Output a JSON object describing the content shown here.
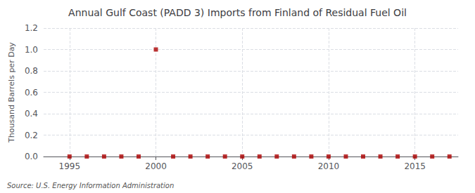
{
  "chart_data": {
    "type": "scatter",
    "title": "Annual Gulf Coast (PADD 3) Imports from Finland of Residual Fuel Oil",
    "ylabel": "Thousand Barrels per Day",
    "source": "Source: U.S. Energy Information Administration",
    "x": [
      1995,
      1996,
      1997,
      1998,
      1999,
      2000,
      2001,
      2002,
      2003,
      2004,
      2005,
      2006,
      2007,
      2008,
      2009,
      2010,
      2011,
      2012,
      2013,
      2014,
      2015,
      2016,
      2017
    ],
    "values": [
      0.0,
      0.0,
      0.0,
      0.0,
      0.0,
      1.0,
      0.0,
      0.0,
      0.0,
      0.0,
      0.0,
      0.0,
      0.0,
      0.0,
      0.0,
      0.0,
      0.0,
      0.0,
      0.0,
      0.0,
      0.0,
      0.0,
      0.0
    ],
    "color": "#aa0000",
    "marker": "square",
    "xlim": [
      1993.5,
      2017.5
    ],
    "xticks": [
      1995,
      2000,
      2005,
      2010,
      2015
    ],
    "ylim": [
      0.0,
      1.2
    ],
    "yticks": [
      {
        "value": 0.0,
        "label": "0.0"
      },
      0.2,
      0.4,
      0.6,
      0.8,
      {
        "value": 1.0,
        "label": "1.0"
      },
      1.2
    ],
    "grid": true
  }
}
